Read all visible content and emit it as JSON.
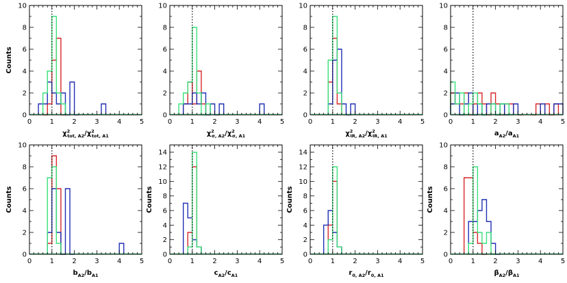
{
  "figure": {
    "colors": {
      "red": "#d62728",
      "blue": "#1f2fb3",
      "green": "#39e07a",
      "reference": "#000000"
    }
  },
  "chart_data": [
    {
      "type": "histogram",
      "ylabel": "Counts",
      "xlabel_parts": [
        [
          "χ",
          ""
        ],
        [
          "2",
          "sup"
        ],
        [
          "tot, A2",
          "sub"
        ],
        [
          "/χ",
          ""
        ],
        [
          "2",
          "sup"
        ],
        [
          "tot, A1",
          "sub"
        ]
      ],
      "xlim": [
        0,
        5
      ],
      "ylim": [
        0,
        10
      ],
      "xticks": [
        0,
        1,
        2,
        3,
        4,
        5
      ],
      "yticks": [
        0,
        2,
        4,
        6,
        8,
        10
      ],
      "reference_line": 1,
      "series": [
        {
          "name": "",
          "color": "red",
          "bin_width": 0.2,
          "bins": [
            [
              0.6,
              0
            ],
            [
              0.8,
              1
            ],
            [
              1.0,
              5
            ],
            [
              1.2,
              7
            ],
            [
              1.4,
              0
            ]
          ]
        },
        {
          "name": "",
          "color": "blue",
          "bin_width": 0.2,
          "bins": [
            [
              0.4,
              1
            ],
            [
              0.6,
              1
            ],
            [
              0.8,
              3
            ],
            [
              1.0,
              2
            ],
            [
              1.2,
              1
            ],
            [
              1.4,
              2
            ],
            [
              1.6,
              0
            ],
            [
              1.8,
              3
            ],
            [
              2.0,
              0
            ],
            [
              3.2,
              1
            ]
          ]
        },
        {
          "name": "",
          "color": "green",
          "bin_width": 0.2,
          "bins": [
            [
              0.6,
              2
            ],
            [
              0.8,
              4
            ],
            [
              1.0,
              9
            ],
            [
              1.2,
              2
            ],
            [
              1.4,
              1
            ]
          ]
        }
      ]
    },
    {
      "type": "histogram",
      "ylabel": "",
      "xlabel_parts": [
        [
          "χ",
          ""
        ],
        [
          "2",
          "sup"
        ],
        [
          "σ, A2",
          "sub"
        ],
        [
          "/χ",
          ""
        ],
        [
          "2",
          "sup"
        ],
        [
          "σ, A1",
          "sub"
        ]
      ],
      "xlim": [
        0,
        5
      ],
      "ylim": [
        0,
        10
      ],
      "xticks": [
        0,
        1,
        2,
        3,
        4,
        5
      ],
      "yticks": [
        0,
        2,
        4,
        6,
        8,
        10
      ],
      "reference_line": 1,
      "series": [
        {
          "name": "",
          "color": "red",
          "bin_width": 0.2,
          "bins": [
            [
              0.6,
              1
            ],
            [
              0.8,
              3
            ],
            [
              1.0,
              1
            ],
            [
              1.2,
              4
            ],
            [
              1.4,
              1
            ]
          ]
        },
        {
          "name": "",
          "color": "blue",
          "bin_width": 0.2,
          "bins": [
            [
              0.6,
              1
            ],
            [
              0.8,
              1
            ],
            [
              1.0,
              2
            ],
            [
              1.2,
              1
            ],
            [
              1.4,
              2
            ],
            [
              1.6,
              0
            ],
            [
              1.8,
              1
            ],
            [
              2.0,
              0
            ],
            [
              2.2,
              1
            ],
            [
              4.0,
              1
            ]
          ]
        },
        {
          "name": "",
          "color": "green",
          "bin_width": 0.2,
          "bins": [
            [
              0.4,
              1
            ],
            [
              0.6,
              2
            ],
            [
              0.8,
              3
            ],
            [
              1.0,
              8
            ],
            [
              1.2,
              2
            ],
            [
              1.4,
              0
            ],
            [
              1.6,
              1
            ]
          ]
        }
      ]
    },
    {
      "type": "histogram",
      "ylabel": "",
      "xlabel_parts": [
        [
          "χ",
          ""
        ],
        [
          "2",
          "sup"
        ],
        [
          "IR, A2",
          "sub"
        ],
        [
          "/χ",
          ""
        ],
        [
          "2",
          "sup"
        ],
        [
          "IR, A1",
          "sub"
        ]
      ],
      "xlim": [
        0,
        5
      ],
      "ylim": [
        0,
        10
      ],
      "xticks": [
        0,
        1,
        2,
        3,
        4,
        5
      ],
      "yticks": [
        0,
        2,
        4,
        6,
        8,
        10
      ],
      "reference_line": 1,
      "series": [
        {
          "name": "",
          "color": "red",
          "bin_width": 0.2,
          "bins": [
            [
              0.8,
              3
            ],
            [
              1.0,
              7
            ],
            [
              1.2,
              1
            ]
          ]
        },
        {
          "name": "",
          "color": "blue",
          "bin_width": 0.2,
          "bins": [
            [
              0.8,
              1
            ],
            [
              1.0,
              5
            ],
            [
              1.2,
              6
            ],
            [
              1.4,
              1
            ],
            [
              1.6,
              0
            ],
            [
              1.8,
              1
            ]
          ]
        },
        {
          "name": "",
          "color": "green",
          "bin_width": 0.2,
          "bins": [
            [
              0.8,
              5
            ],
            [
              1.0,
              9
            ],
            [
              1.2,
              2
            ]
          ]
        }
      ]
    },
    {
      "type": "histogram",
      "ylabel": "",
      "xlabel_parts": [
        [
          "a",
          ""
        ],
        [
          "A2",
          "sub"
        ],
        [
          "/a",
          ""
        ],
        [
          "A1",
          "sub"
        ]
      ],
      "xlim": [
        0,
        5
      ],
      "ylim": [
        0,
        10
      ],
      "xticks": [
        0,
        1,
        2,
        3,
        4,
        5
      ],
      "yticks": [
        0,
        2,
        4,
        6,
        8,
        10
      ],
      "reference_line": 1,
      "series": [
        {
          "name": "",
          "color": "red",
          "bin_width": 0.2,
          "bins": [
            [
              0.0,
              2
            ],
            [
              0.2,
              1
            ],
            [
              0.4,
              1
            ],
            [
              0.6,
              2
            ],
            [
              0.8,
              0
            ],
            [
              1.0,
              1
            ],
            [
              1.2,
              2
            ],
            [
              1.4,
              1
            ],
            [
              1.6,
              0
            ],
            [
              1.8,
              2
            ],
            [
              2.0,
              1
            ],
            [
              2.2,
              0
            ],
            [
              2.4,
              1
            ],
            [
              2.6,
              1
            ],
            [
              3.0,
              0
            ],
            [
              3.6,
              0
            ],
            [
              3.8,
              1
            ],
            [
              4.2,
              1
            ],
            [
              4.4,
              0
            ],
            [
              4.6,
              1
            ]
          ]
        },
        {
          "name": "",
          "color": "blue",
          "bin_width": 0.2,
          "bins": [
            [
              0.0,
              1
            ],
            [
              0.2,
              2
            ],
            [
              0.4,
              0
            ],
            [
              0.6,
              1
            ],
            [
              0.8,
              2
            ],
            [
              1.0,
              0
            ],
            [
              1.2,
              1
            ],
            [
              1.4,
              0
            ],
            [
              1.6,
              1
            ],
            [
              1.8,
              1
            ],
            [
              2.0,
              0
            ],
            [
              2.2,
              1
            ],
            [
              2.4,
              0
            ],
            [
              2.8,
              1
            ],
            [
              4.0,
              1
            ],
            [
              4.6,
              1
            ],
            [
              4.8,
              1
            ]
          ]
        },
        {
          "name": "",
          "color": "green",
          "bin_width": 0.2,
          "bins": [
            [
              0.0,
              3
            ],
            [
              0.2,
              1
            ],
            [
              0.4,
              2
            ],
            [
              0.6,
              0
            ],
            [
              0.8,
              1
            ],
            [
              1.0,
              2
            ],
            [
              1.2,
              1
            ],
            [
              1.4,
              0
            ],
            [
              1.8,
              1
            ],
            [
              2.0,
              0
            ],
            [
              2.2,
              1
            ],
            [
              2.4,
              1
            ],
            [
              2.6,
              0
            ]
          ]
        }
      ]
    },
    {
      "type": "histogram",
      "ylabel": "Counts",
      "xlabel_parts": [
        [
          "b",
          ""
        ],
        [
          "A2",
          "sub"
        ],
        [
          "/b",
          ""
        ],
        [
          "A1",
          "sub"
        ]
      ],
      "xlim": [
        0,
        5
      ],
      "ylim": [
        0,
        10
      ],
      "xticks": [
        0,
        1,
        2,
        3,
        4,
        5
      ],
      "yticks": [
        0,
        2,
        4,
        6,
        8,
        10
      ],
      "reference_line": 1,
      "series": [
        {
          "name": "",
          "color": "red",
          "bin_width": 0.2,
          "bins": [
            [
              0.8,
              1
            ],
            [
              1.0,
              9
            ],
            [
              1.2,
              6
            ],
            [
              1.4,
              0
            ]
          ]
        },
        {
          "name": "",
          "color": "blue",
          "bin_width": 0.2,
          "bins": [
            [
              0.8,
              2
            ],
            [
              1.0,
              6
            ],
            [
              1.2,
              2
            ],
            [
              1.4,
              0
            ],
            [
              1.6,
              6
            ],
            [
              1.8,
              0
            ],
            [
              4.0,
              1
            ]
          ]
        },
        {
          "name": "",
          "color": "green",
          "bin_width": 0.2,
          "bins": [
            [
              0.8,
              7
            ],
            [
              1.0,
              8
            ],
            [
              1.2,
              1
            ]
          ]
        }
      ]
    },
    {
      "type": "histogram",
      "ylabel": "Counts",
      "xlabel_parts": [
        [
          "c",
          ""
        ],
        [
          "A2",
          "sub"
        ],
        [
          "/c",
          ""
        ],
        [
          "A1",
          "sub"
        ]
      ],
      "xlim": [
        0,
        5
      ],
      "ylim": [
        0,
        15
      ],
      "xticks": [
        0,
        1,
        2,
        3,
        4,
        5
      ],
      "yticks": [
        0,
        2,
        4,
        6,
        8,
        10,
        12,
        14
      ],
      "reference_line": 1,
      "series": [
        {
          "name": "",
          "color": "red",
          "bin_width": 0.2,
          "bins": [
            [
              0.8,
              3
            ],
            [
              1.0,
              12
            ],
            [
              1.2,
              1
            ]
          ]
        },
        {
          "name": "",
          "color": "blue",
          "bin_width": 0.2,
          "bins": [
            [
              0.6,
              7
            ],
            [
              0.8,
              5
            ],
            [
              1.0,
              2
            ],
            [
              1.2,
              1
            ]
          ]
        },
        {
          "name": "",
          "color": "green",
          "bin_width": 0.2,
          "bins": [
            [
              0.8,
              1
            ],
            [
              1.0,
              14
            ],
            [
              1.2,
              1
            ]
          ]
        }
      ]
    },
    {
      "type": "histogram",
      "ylabel": "Counts",
      "xlabel_parts": [
        [
          "r",
          ""
        ],
        [
          "0, A2",
          "sub"
        ],
        [
          "/r",
          ""
        ],
        [
          "0, A1",
          "sub"
        ]
      ],
      "xlim": [
        0,
        5
      ],
      "ylim": [
        0,
        15
      ],
      "xticks": [
        0,
        1,
        2,
        3,
        4,
        5
      ],
      "yticks": [
        0,
        2,
        4,
        6,
        8,
        10,
        12,
        14
      ],
      "reference_line": 1,
      "series": [
        {
          "name": "",
          "color": "red",
          "bin_width": 0.2,
          "bins": [
            [
              0.8,
              4
            ],
            [
              1.0,
              10
            ],
            [
              1.2,
              1
            ]
          ]
        },
        {
          "name": "",
          "color": "blue",
          "bin_width": 0.2,
          "bins": [
            [
              0.6,
              4
            ],
            [
              0.8,
              6
            ],
            [
              1.0,
              3
            ],
            [
              1.2,
              1
            ]
          ]
        },
        {
          "name": "",
          "color": "green",
          "bin_width": 0.2,
          "bins": [
            [
              0.8,
              2
            ],
            [
              1.0,
              12
            ],
            [
              1.2,
              1
            ]
          ]
        }
      ]
    },
    {
      "type": "histogram",
      "ylabel": "Counts",
      "xlabel_parts": [
        [
          "β",
          ""
        ],
        [
          "A2",
          "sub"
        ],
        [
          "/β",
          ""
        ],
        [
          "A1",
          "sub"
        ]
      ],
      "xlim": [
        0,
        5
      ],
      "ylim": [
        0,
        10
      ],
      "xticks": [
        0,
        1,
        2,
        3,
        4,
        5
      ],
      "yticks": [
        0,
        2,
        4,
        6,
        8,
        10
      ],
      "reference_line": 1,
      "series": [
        {
          "name": "",
          "color": "red",
          "bin_width": 0.2,
          "bins": [
            [
              0.6,
              7
            ],
            [
              0.8,
              7
            ],
            [
              1.0,
              2
            ],
            [
              1.2,
              1
            ],
            [
              1.4,
              0
            ]
          ]
        },
        {
          "name": "",
          "color": "blue",
          "bin_width": 0.2,
          "bins": [
            [
              0.8,
              3
            ],
            [
              1.0,
              3
            ],
            [
              1.2,
              4
            ],
            [
              1.4,
              5
            ],
            [
              1.6,
              3
            ],
            [
              1.8,
              1
            ],
            [
              2.0,
              0
            ]
          ]
        },
        {
          "name": "",
          "color": "green",
          "bin_width": 0.2,
          "bins": [
            [
              0.8,
              1
            ],
            [
              1.0,
              8
            ],
            [
              1.2,
              2
            ],
            [
              1.4,
              1
            ],
            [
              1.6,
              2
            ],
            [
              1.8,
              0
            ]
          ]
        }
      ]
    }
  ]
}
